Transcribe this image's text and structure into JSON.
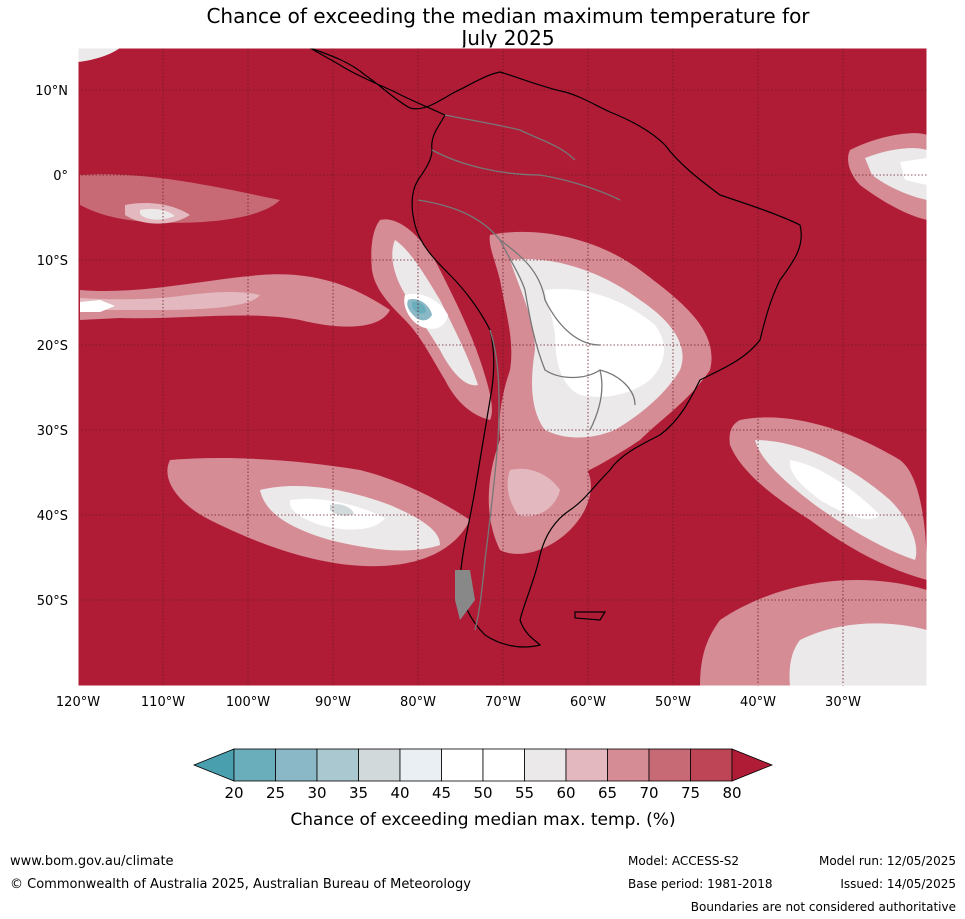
{
  "title_line1": "Chance of exceeding the median maximum temperature for",
  "title_line2": "July 2025",
  "lat_labels": [
    "10°N",
    "0°",
    "10°S",
    "20°S",
    "30°S",
    "40°S",
    "50°S"
  ],
  "lon_labels": [
    "120°W",
    "110°W",
    "100°W",
    "90°W",
    "80°W",
    "70°W",
    "60°W",
    "50°W",
    "40°W",
    "30°W"
  ],
  "colorbar": {
    "ticks": [
      "20",
      "25",
      "30",
      "35",
      "40",
      "45",
      "50",
      "55",
      "60",
      "65",
      "70",
      "75",
      "80"
    ],
    "label": "Chance of exceeding median max. temp. (%)",
    "below_color": "#4a9fae",
    "above_color": "#b01c36",
    "colors": [
      "#6aadbb",
      "#8ab8c6",
      "#a9c8cf",
      "#d1d9da",
      "#e9eff2",
      "#ffffff",
      "#ffffff",
      "#ebe9ea",
      "#e3b9bf",
      "#d58c95",
      "#c76a75",
      "#bd4556"
    ]
  },
  "footer": {
    "website": "www.bom.gov.au/climate",
    "copyright": "© Commonwealth of Australia 2025, Australian Bureau of Meteorology",
    "model": "Model: ACCESS-S2",
    "base_period": "Base period: 1981-2018",
    "model_run": "Model run: 12/05/2025",
    "issued": "Issued: 14/05/2025",
    "disclaimer": "Boundaries are not considered authoritative"
  },
  "colors": {
    "background_high": "#b01c36",
    "mid": "#d58c95",
    "light": "#ebe9ea",
    "grid": "#6b1a25",
    "coast": "#000000",
    "borders": "#777777"
  }
}
